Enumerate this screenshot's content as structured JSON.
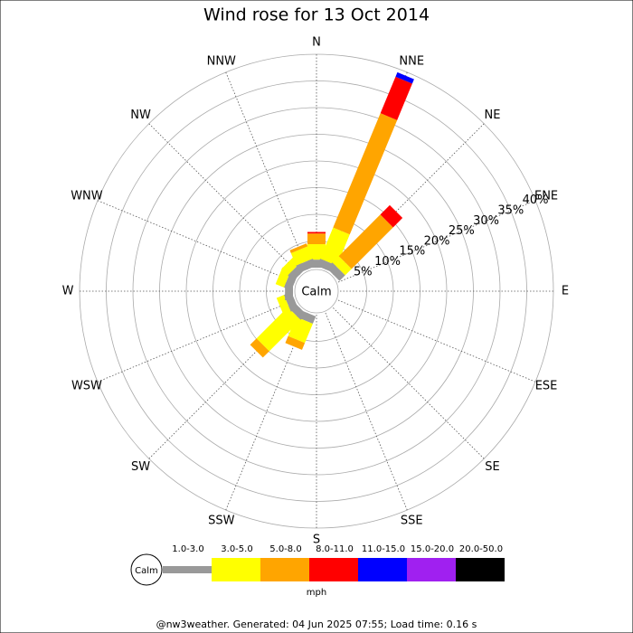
{
  "chart_data": {
    "type": "windrose",
    "title": "Wind rose for 13 Oct 2014",
    "center_label": "Calm",
    "categories": [
      "N",
      "NNE",
      "NE",
      "ENE",
      "E",
      "ESE",
      "SE",
      "SSE",
      "S",
      "SSW",
      "SW",
      "WSW",
      "W",
      "WNW",
      "NW",
      "NNW"
    ],
    "series": [
      {
        "name": "1.0-3.0",
        "color": "#999999",
        "values": [
          1.5,
          1.5,
          1.5,
          0,
          0,
          0,
          0,
          0,
          0,
          1.5,
          1.5,
          1.5,
          1.5,
          1.5,
          1.5,
          1.5
        ]
      },
      {
        "name": "3.0-5.0",
        "color": "#ffff00",
        "values": [
          2.9,
          6.3,
          1.7,
          0,
          0,
          0,
          0,
          0,
          0,
          3.9,
          8.3,
          1.5,
          0,
          1.7,
          1.7,
          2.5
        ]
      },
      {
        "name": "5.0-8.0",
        "color": "#ffa500",
        "values": [
          2.0,
          23.2,
          11.0,
          0,
          0,
          0,
          0,
          0,
          0,
          1.4,
          1.7,
          0,
          0,
          0,
          0,
          0.6
        ]
      },
      {
        "name": "8.0-11.0",
        "color": "#ff0000",
        "values": [
          0.3,
          7.4,
          2.5,
          0,
          0,
          0,
          0,
          0,
          0,
          0,
          0,
          0,
          0,
          0,
          0,
          0
        ]
      },
      {
        "name": "11.0-15.0",
        "color": "#0000ff",
        "values": [
          0,
          0.9,
          0,
          0,
          0,
          0,
          0,
          0,
          0,
          0,
          0,
          0,
          0,
          0,
          0,
          0
        ]
      },
      {
        "name": "15.0-20.0",
        "color": "#a020f0",
        "values": [
          0,
          0,
          0,
          0,
          0,
          0,
          0,
          0,
          0,
          0,
          0,
          0,
          0,
          0,
          0,
          0
        ]
      },
      {
        "name": "20.0-50.0",
        "color": "#000000",
        "values": [
          0,
          0,
          0,
          0,
          0,
          0,
          0,
          0,
          0,
          0,
          0,
          0,
          0,
          0,
          0,
          0
        ]
      }
    ],
    "ylim": [
      0,
      40
    ],
    "yticks": [
      {
        "value": 5,
        "label": "5%"
      },
      {
        "value": 10,
        "label": "10%"
      },
      {
        "value": 15,
        "label": "15%"
      },
      {
        "value": 20,
        "label": "20%"
      },
      {
        "value": 25,
        "label": "25%"
      },
      {
        "value": 30,
        "label": "30%"
      },
      {
        "value": 35,
        "label": "35%"
      },
      {
        "value": 40,
        "label": "40%"
      }
    ],
    "legend_calm": "Calm",
    "legend_unit": "mph",
    "footer": "@nw3weather. Generated: 04 Jun 2025 07:55; Load time: 0.16 s"
  }
}
